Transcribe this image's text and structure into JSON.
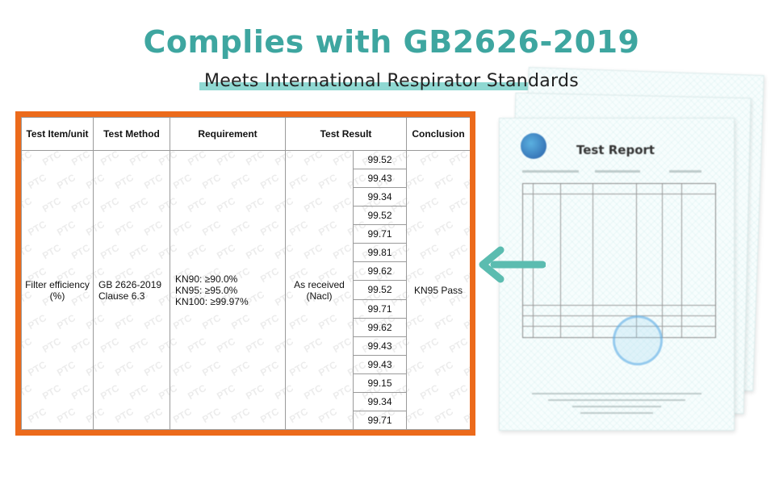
{
  "header": {
    "title": "Complies with GB2626-2019",
    "subtitle": "Meets International Respirator Standards"
  },
  "table": {
    "headers": [
      "Test Item/unit",
      "Test Method",
      "Requirement",
      "Test Result",
      "Conclusion"
    ],
    "test_item": "Filter efficiency (%)",
    "test_method": "GB 2626-2019 Clause 6.3",
    "requirement": [
      "KN90: ≥90.0%",
      "KN95: ≥95.0%",
      "KN100: ≥99.97%"
    ],
    "condition": "As received (Nacl)",
    "results": [
      "99.52",
      "99.43",
      "99.34",
      "99.52",
      "99.71",
      "99.81",
      "99.62",
      "99.52",
      "99.71",
      "99.62",
      "99.43",
      "99.43",
      "99.15",
      "99.34",
      "99.71"
    ],
    "conclusion": "KN95 Pass",
    "watermark": "PTC"
  },
  "report": {
    "title": "Test Report"
  },
  "colors": {
    "headline": "#3ea6a0",
    "highlight": "#8fd8d2",
    "frame": "#ec6a1b",
    "arrow": "#5bbcb0"
  }
}
